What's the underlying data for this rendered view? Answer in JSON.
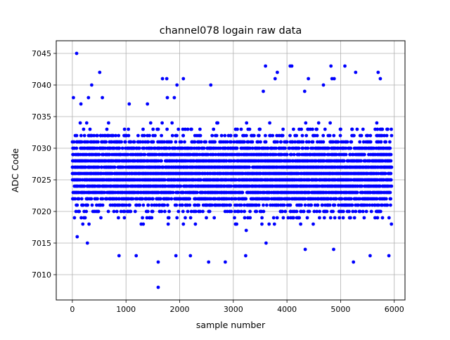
{
  "chart_data": {
    "type": "scatter",
    "title": "channel078 logain raw data",
    "xlabel": "sample number",
    "ylabel": "ADC Code",
    "xlim": [
      -300,
      6200
    ],
    "ylim": [
      7006,
      7047
    ],
    "xticks": [
      0,
      1000,
      2000,
      3000,
      4000,
      5000,
      6000
    ],
    "yticks": [
      7010,
      7015,
      7020,
      7025,
      7030,
      7035,
      7040,
      7045
    ],
    "grid": true,
    "marker_color": "#0000ff",
    "n_samples": 5950,
    "band": {
      "low": 7018,
      "high": 7034,
      "center": 7026
    },
    "outliers": [
      {
        "x": 80,
        "y": 7045
      },
      {
        "x": 20,
        "y": 7038
      },
      {
        "x": 160,
        "y": 7037
      },
      {
        "x": 300,
        "y": 7038
      },
      {
        "x": 360,
        "y": 7040
      },
      {
        "x": 510,
        "y": 7042
      },
      {
        "x": 560,
        "y": 7038
      },
      {
        "x": 280,
        "y": 7015
      },
      {
        "x": 90,
        "y": 7016
      },
      {
        "x": 870,
        "y": 7013
      },
      {
        "x": 1060,
        "y": 7037
      },
      {
        "x": 1190,
        "y": 7013
      },
      {
        "x": 1400,
        "y": 7037
      },
      {
        "x": 1600,
        "y": 7012
      },
      {
        "x": 1600,
        "y": 7008
      },
      {
        "x": 1680,
        "y": 7041
      },
      {
        "x": 1760,
        "y": 7041
      },
      {
        "x": 1770,
        "y": 7038
      },
      {
        "x": 1900,
        "y": 7038
      },
      {
        "x": 1950,
        "y": 7040
      },
      {
        "x": 2070,
        "y": 7041
      },
      {
        "x": 1930,
        "y": 7013
      },
      {
        "x": 2200,
        "y": 7013
      },
      {
        "x": 2540,
        "y": 7012
      },
      {
        "x": 2580,
        "y": 7040
      },
      {
        "x": 2850,
        "y": 7012
      },
      {
        "x": 3230,
        "y": 7013
      },
      {
        "x": 3560,
        "y": 7039
      },
      {
        "x": 3600,
        "y": 7043
      },
      {
        "x": 3610,
        "y": 7015
      },
      {
        "x": 3780,
        "y": 7041
      },
      {
        "x": 3820,
        "y": 7042
      },
      {
        "x": 4060,
        "y": 7043
      },
      {
        "x": 4090,
        "y": 7043
      },
      {
        "x": 4330,
        "y": 7039
      },
      {
        "x": 4400,
        "y": 7041
      },
      {
        "x": 4340,
        "y": 7014
      },
      {
        "x": 4680,
        "y": 7040
      },
      {
        "x": 4820,
        "y": 7043
      },
      {
        "x": 4840,
        "y": 7041
      },
      {
        "x": 4880,
        "y": 7041
      },
      {
        "x": 4870,
        "y": 7014
      },
      {
        "x": 5080,
        "y": 7043
      },
      {
        "x": 5240,
        "y": 7012
      },
      {
        "x": 5280,
        "y": 7042
      },
      {
        "x": 5550,
        "y": 7013
      },
      {
        "x": 5700,
        "y": 7042
      },
      {
        "x": 5740,
        "y": 7041
      },
      {
        "x": 5900,
        "y": 7013
      }
    ]
  }
}
